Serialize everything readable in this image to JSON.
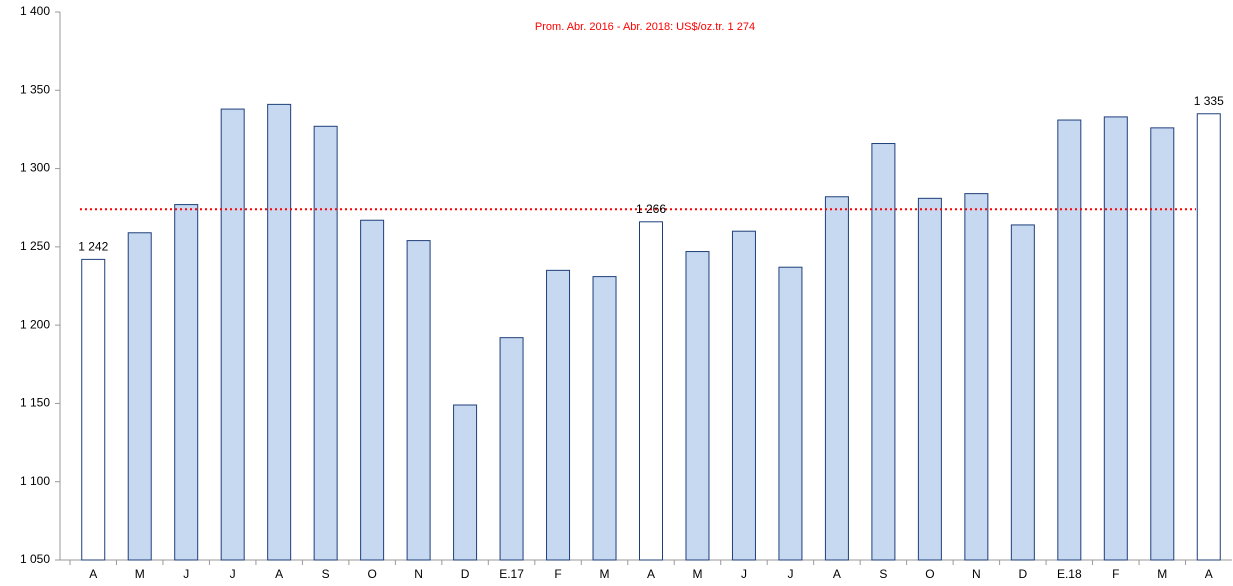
{
  "chart_data": {
    "type": "bar",
    "annotation": "Prom. Abr. 2016 - Abr. 2018: US$/oz.tr. 1 274",
    "average": 1274,
    "average_color": "#ff0000",
    "categories": [
      "A",
      "M",
      "J",
      "J",
      "A",
      "S",
      "O",
      "N",
      "D",
      "E.17",
      "F",
      "M",
      "A",
      "M",
      "J",
      "J",
      "A",
      "S",
      "O",
      "N",
      "D",
      "E.18",
      "F",
      "M",
      "A"
    ],
    "values": [
      1242,
      1259,
      1277,
      1338,
      1341,
      1327,
      1267,
      1254,
      1149,
      1192,
      1235,
      1231,
      1266,
      1247,
      1260,
      1237,
      1282,
      1316,
      1281,
      1284,
      1264,
      1331,
      1333,
      1326,
      1335
    ],
    "value_labels": [
      "1 242",
      null,
      null,
      null,
      null,
      null,
      null,
      null,
      null,
      null,
      null,
      null,
      "1 266",
      null,
      null,
      null,
      null,
      null,
      null,
      null,
      null,
      null,
      null,
      null,
      "1 335"
    ],
    "colors": [
      "#ffffff",
      "#c6d9f1",
      "#c6d9f1",
      "#c6d9f1",
      "#c6d9f1",
      "#c6d9f1",
      "#c6d9f1",
      "#c6d9f1",
      "#c6d9f1",
      "#c6d9f1",
      "#c6d9f1",
      "#c6d9f1",
      "#ffffff",
      "#c6d9f1",
      "#c6d9f1",
      "#c6d9f1",
      "#c6d9f1",
      "#c6d9f1",
      "#c6d9f1",
      "#c6d9f1",
      "#c6d9f1",
      "#c6d9f1",
      "#c6d9f1",
      "#c6d9f1",
      "#ffffff"
    ],
    "edge_color": "#1f3f7a",
    "ylim": [
      1050,
      1400
    ],
    "yticks": [
      {
        "value": 1050,
        "label": "1 050"
      },
      {
        "value": 1100,
        "label": "1 100"
      },
      {
        "value": 1150,
        "label": "1 150"
      },
      {
        "value": 1200,
        "label": "1 200"
      },
      {
        "value": 1250,
        "label": "1 250"
      },
      {
        "value": 1300,
        "label": "1 300"
      },
      {
        "value": 1350,
        "label": "1 350"
      },
      {
        "value": 1400,
        "label": "1 400"
      }
    ]
  }
}
